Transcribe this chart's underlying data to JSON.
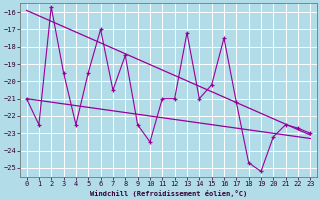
{
  "xlabel": "Windchill (Refroidissement éolien,°C)",
  "bg_color": "#b2dde8",
  "grid_color": "#ffffff",
  "line_color": "#990099",
  "ylim": [
    -25.5,
    -15.5
  ],
  "xlim": [
    -0.5,
    23.5
  ],
  "yticks": [
    -25,
    -24,
    -23,
    -22,
    -21,
    -20,
    -19,
    -18,
    -17,
    -16
  ],
  "xticks": [
    0,
    1,
    2,
    3,
    4,
    5,
    6,
    7,
    8,
    9,
    10,
    11,
    12,
    13,
    14,
    15,
    16,
    17,
    18,
    19,
    20,
    21,
    22,
    23
  ],
  "data_y": [
    -21.0,
    -22.5,
    -15.7,
    -19.5,
    -22.5,
    -19.5,
    -17.0,
    -20.5,
    -18.5,
    -22.5,
    -23.5,
    -21.0,
    -21.0,
    -17.2,
    -21.0,
    -20.2,
    -17.5,
    -21.2,
    -24.7,
    -25.2,
    -23.2,
    -22.5,
    -22.7,
    -23.0
  ],
  "trend1": [
    0,
    -15.9,
    23,
    -23.1
  ],
  "trend2": [
    0,
    -21.0,
    23,
    -23.3
  ],
  "marker_color": "#990099"
}
